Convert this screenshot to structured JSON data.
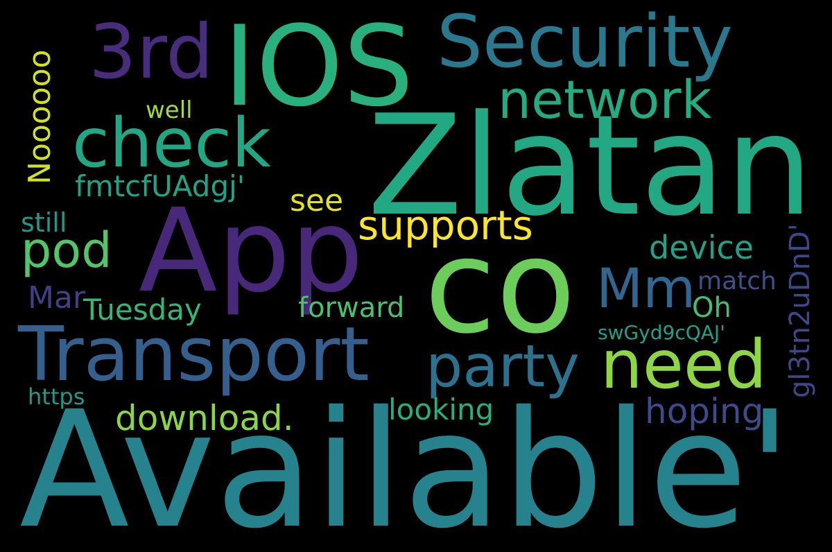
{
  "words": {
    "available": {
      "text": "Available'",
      "color": "#26838E"
    },
    "zlatan": {
      "text": "Zlatan",
      "color": "#23A884"
    },
    "ios": {
      "text": "IOS",
      "color": "#2AB07F"
    },
    "app": {
      "text": "App",
      "color": "#482878"
    },
    "co": {
      "text": "co",
      "color": "#6CCD5A"
    },
    "security": {
      "text": "Security",
      "color": "#2A788E"
    },
    "transport": {
      "text": "Transport",
      "color": "#355F8D"
    },
    "third": {
      "text": "3rd",
      "color": "#472D7B"
    },
    "check": {
      "text": "check",
      "color": "#22A785"
    },
    "network": {
      "text": "network",
      "color": "#25AB82"
    },
    "need": {
      "text": "need",
      "color": "#8ED645"
    },
    "party": {
      "text": "party",
      "color": "#2C728E"
    },
    "mm": {
      "text": "Mm",
      "color": "#31668E"
    },
    "pod": {
      "text": "pod",
      "color": "#52C569"
    },
    "supports": {
      "text": "supports",
      "color": "#FDE725"
    },
    "download": {
      "text": "download.",
      "color": "#8BD646"
    },
    "hoping": {
      "text": "hoping",
      "color": "#3E4A89"
    },
    "device": {
      "text": "device",
      "color": "#1FA287"
    },
    "tuesday": {
      "text": "Tuesday",
      "color": "#35B779"
    },
    "forward": {
      "text": "forward",
      "color": "#4AC16D"
    },
    "looking": {
      "text": "looking",
      "color": "#29AF7F"
    },
    "see": {
      "text": "see",
      "color": "#E2E418"
    },
    "fmtcf": {
      "text": "fmtcfUAdgj'",
      "color": "#20A386"
    },
    "still": {
      "text": "still",
      "color": "#1F9A8A"
    },
    "mar": {
      "text": "Mar",
      "color": "#433E85"
    },
    "https": {
      "text": "https",
      "color": "#1E9B8A"
    },
    "match": {
      "text": "match",
      "color": "#3B528B"
    },
    "oh": {
      "text": "Oh",
      "color": "#44BF70"
    },
    "swgyd": {
      "text": "swGyd9cQAJ'",
      "color": "#1FA188"
    },
    "well": {
      "text": "well",
      "color": "#A0DA39"
    },
    "noooooo": {
      "text": "Noooooo",
      "color": "#D2E21B"
    },
    "gl3tn": {
      "text": "gl3tn2uDnD'",
      "color": "#3F4788"
    }
  }
}
